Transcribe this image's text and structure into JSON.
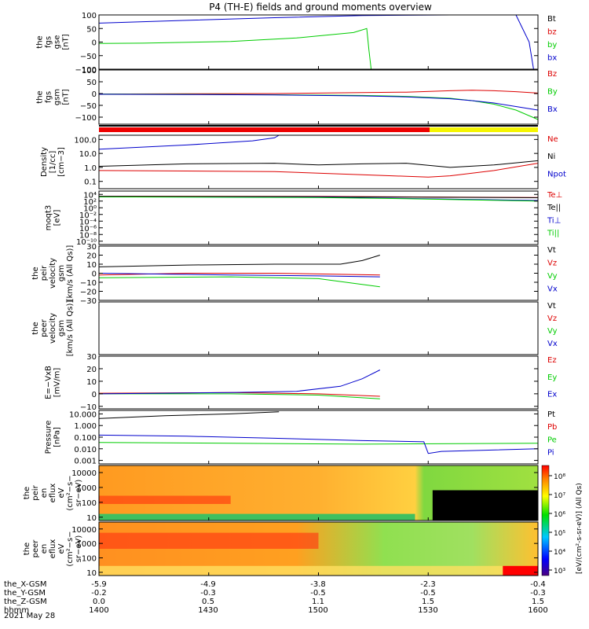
{
  "title": "P4 (TH-E) fields and ground moments overview",
  "date_label": "2021 May 28",
  "colors": {
    "black": "#000000",
    "red": "#dd0000",
    "green": "#00cc00",
    "blue": "#0000cc",
    "yellow": "#f5f500",
    "gray": "#888888"
  },
  "orbit": {
    "rows": [
      {
        "label": "the_X-GSM",
        "values": [
          "-5.9",
          "-4.9",
          "-3.8",
          "-2.3",
          "-0.4"
        ]
      },
      {
        "label": "the_Y-GSM",
        "values": [
          "-0.2",
          "-0.3",
          "-0.5",
          "-0.5",
          "-0.3"
        ]
      },
      {
        "label": "the_Z-GSM",
        "values": [
          "0.0",
          "0.5",
          "1.1",
          "1.5",
          "1.5"
        ]
      },
      {
        "label": "hhmm",
        "values": [
          "1400",
          "1430",
          "1500",
          "1530",
          "1600"
        ]
      }
    ]
  },
  "colorbar": {
    "ticks": [
      "10³",
      "10⁴",
      "10⁵",
      "10⁶",
      "10⁷",
      "10⁸"
    ],
    "units": "[eV/(cm²-s-sr-eV)] (All Qs)"
  },
  "chart_data": [
    {
      "type": "line",
      "id": "fgs_gse",
      "ylabel": [
        "the",
        "fgs",
        "gse",
        "[nT]"
      ],
      "ylim": [
        -100,
        100
      ],
      "ticks": [
        {
          "v": 100,
          "t": "100"
        },
        {
          "v": 50,
          "t": "50"
        },
        {
          "v": 0,
          "t": "0"
        },
        {
          "v": -50,
          "t": "−50"
        },
        {
          "v": -100,
          "t": "−100"
        }
      ],
      "series": [
        {
          "name": "Bt",
          "color": "#000000",
          "x": [],
          "y": []
        },
        {
          "name": "bz",
          "color": "#dd0000",
          "x": [],
          "y": []
        },
        {
          "name": "by",
          "color": "#00cc00",
          "x": [
            0,
            0.1,
            0.3,
            0.45,
            0.58,
            0.61,
            0.615,
            0.62
          ],
          "y": [
            -5,
            -4,
            2,
            15,
            35,
            50,
            -30,
            -100
          ]
        },
        {
          "name": "bx",
          "color": "#0000cc",
          "x": [
            0,
            0.2,
            0.4,
            0.6,
            0.8,
            0.9,
            0.95,
            0.98,
            0.99
          ],
          "y": [
            70,
            80,
            90,
            98,
            100,
            100,
            100,
            0,
            -100
          ]
        }
      ]
    },
    {
      "type": "line",
      "id": "fgs_gsm",
      "ylabel": [
        "the",
        "fgs",
        "gsm",
        "[nT]"
      ],
      "ylim": [
        -130,
        100
      ],
      "ticks": [
        {
          "v": 100,
          "t": "100"
        },
        {
          "v": 50,
          "t": "50"
        },
        {
          "v": 0,
          "t": "0"
        },
        {
          "v": -50,
          "t": "−50"
        },
        {
          "v": -100,
          "t": "−100"
        }
      ],
      "series": [
        {
          "name": "Bz",
          "color": "#dd0000",
          "x": [
            0,
            0.2,
            0.4,
            0.6,
            0.7,
            0.8,
            0.85,
            0.9,
            0.95,
            1.0
          ],
          "y": [
            -2,
            -1,
            0,
            4,
            6,
            12,
            14,
            12,
            8,
            2
          ]
        },
        {
          "name": "By",
          "color": "#00cc00",
          "x": [
            0,
            0.2,
            0.4,
            0.6,
            0.7,
            0.8,
            0.85,
            0.9,
            0.95,
            1.0
          ],
          "y": [
            -2,
            -3,
            -5,
            -8,
            -12,
            -20,
            -30,
            -45,
            -70,
            -110
          ]
        },
        {
          "name": "Bx",
          "color": "#0000cc",
          "x": [
            0,
            0.2,
            0.4,
            0.6,
            0.7,
            0.8,
            0.85,
            0.9,
            0.95,
            1.0
          ],
          "y": [
            -3,
            -4,
            -6,
            -10,
            -14,
            -22,
            -30,
            -40,
            -55,
            -70
          ]
        }
      ]
    },
    {
      "type": "line",
      "id": "density",
      "ylabel": [
        "Density",
        "[1/cc]",
        "[cm−3]"
      ],
      "log": true,
      "ylim": [
        0.03,
        200
      ],
      "ticks": [
        {
          "v": 100,
          "t": "100.0"
        },
        {
          "v": 10,
          "t": "10.0"
        },
        {
          "v": 1,
          "t": "1.0"
        },
        {
          "v": 0.1,
          "t": "0.1"
        }
      ],
      "series": [
        {
          "name": "Ne",
          "color": "#dd0000",
          "x": [
            0,
            0.2,
            0.4,
            0.6,
            0.75,
            0.8,
            0.9,
            1.0
          ],
          "y": [
            0.6,
            0.55,
            0.5,
            0.3,
            0.2,
            0.25,
            0.6,
            2.0
          ]
        },
        {
          "name": "Ni",
          "color": "#000000",
          "x": [
            0,
            0.2,
            0.4,
            0.5,
            0.6,
            0.7,
            0.8,
            0.9,
            1.0
          ],
          "y": [
            1.2,
            1.8,
            2.0,
            1.5,
            1.8,
            2.0,
            1.0,
            1.5,
            3.0
          ]
        },
        {
          "name": "Npot",
          "color": "#0000cc",
          "x": [
            0,
            0.2,
            0.35,
            0.4,
            0.41
          ],
          "y": [
            20,
            40,
            80,
            130,
            200
          ]
        }
      ]
    },
    {
      "type": "line",
      "id": "moqt3",
      "ylabel": [
        "moqt3",
        "[eV]"
      ],
      "log": true,
      "ylim": [
        1e-11,
        100000.0
      ],
      "ticks": [
        {
          "v": 10000,
          "t": "10⁴"
        },
        {
          "v": 100,
          "t": "10²"
        },
        {
          "v": 1,
          "t": "10⁰"
        },
        {
          "v": 0.01,
          "t": "10⁻²"
        },
        {
          "v": 0.0001,
          "t": "10⁻⁴"
        },
        {
          "v": 1e-06,
          "t": "10⁻⁶"
        },
        {
          "v": 1e-08,
          "t": "10⁻⁸"
        },
        {
          "v": 1e-10,
          "t": "10⁻¹⁰"
        }
      ],
      "series": [
        {
          "name": "Te⊥",
          "color": "#dd0000",
          "x": [
            0,
            0.5,
            1.0
          ],
          "y": [
            3000,
            2500,
            1200
          ]
        },
        {
          "name": "Te||",
          "color": "#000000",
          "x": [
            0,
            0.5,
            1.0
          ],
          "y": [
            2500,
            2000,
            1000
          ]
        },
        {
          "name": "Ti⊥",
          "color": "#0000cc",
          "x": [
            0,
            0.5,
            0.7,
            1.0
          ],
          "y": [
            2000,
            1500,
            600,
            150
          ]
        },
        {
          "name": "Ti||",
          "color": "#00cc00",
          "x": [
            0,
            0.5,
            0.7,
            1.0
          ],
          "y": [
            1800,
            1200,
            500,
            100
          ]
        }
      ]
    },
    {
      "type": "line",
      "id": "peir_vel",
      "ylabel": [
        "the",
        "peir",
        "velocity",
        "gsm",
        "[km/s (All Qs)]"
      ],
      "ylim": [
        -30,
        30
      ],
      "ticks": [
        {
          "v": 30,
          "t": "30"
        },
        {
          "v": 20,
          "t": "20"
        },
        {
          "v": 10,
          "t": "10"
        },
        {
          "v": 0,
          "t": "0"
        },
        {
          "v": -10,
          "t": "−10"
        },
        {
          "v": -20,
          "t": "−20"
        },
        {
          "v": -30,
          "t": "−30"
        }
      ],
      "series": [
        {
          "name": "Vt",
          "color": "#000000",
          "x": [
            0,
            0.2,
            0.4,
            0.55,
            0.6,
            0.64
          ],
          "y": [
            7,
            9,
            10,
            10,
            14,
            20
          ]
        },
        {
          "name": "Vz",
          "color": "#dd0000",
          "x": [
            0,
            0.2,
            0.4,
            0.64
          ],
          "y": [
            -2,
            0,
            0,
            -2
          ]
        },
        {
          "name": "Vy",
          "color": "#00cc00",
          "x": [
            0,
            0.3,
            0.5,
            0.64
          ],
          "y": [
            -5,
            -4,
            -6,
            -15
          ]
        },
        {
          "name": "Vx",
          "color": "#0000cc",
          "x": [
            0,
            0.3,
            0.5,
            0.64
          ],
          "y": [
            0,
            -2,
            -3,
            -4
          ]
        }
      ]
    },
    {
      "type": "line",
      "id": "peer_vel",
      "ylabel": [
        "the",
        "peer",
        "velocity",
        "gsm",
        "[km/s (All Qs)]"
      ],
      "ylim": [
        -30,
        30
      ],
      "ticks": [],
      "series": [
        {
          "name": "Vt",
          "color": "#000000",
          "x": [],
          "y": []
        },
        {
          "name": "Vz",
          "color": "#dd0000",
          "x": [],
          "y": []
        },
        {
          "name": "Vy",
          "color": "#00cc00",
          "x": [],
          "y": []
        },
        {
          "name": "Vx",
          "color": "#0000cc",
          "x": [],
          "y": []
        }
      ]
    },
    {
      "type": "line",
      "id": "efield",
      "ylabel": [
        "E=−VxB",
        "[mV/m]"
      ],
      "ylim": [
        -12,
        30
      ],
      "ticks": [
        {
          "v": 30,
          "t": "30"
        },
        {
          "v": 20,
          "t": "20"
        },
        {
          "v": 10,
          "t": "10"
        },
        {
          "v": 0,
          "t": "0"
        },
        {
          "v": -10,
          "t": "−10"
        }
      ],
      "series": [
        {
          "name": "Ez",
          "color": "#dd0000",
          "x": [
            0,
            0.3,
            0.5,
            0.64
          ],
          "y": [
            0.5,
            1,
            0,
            -2
          ]
        },
        {
          "name": "Ey",
          "color": "#00cc00",
          "x": [
            0,
            0.3,
            0.5,
            0.64
          ],
          "y": [
            0,
            0,
            -1,
            -4
          ]
        },
        {
          "name": "Ex",
          "color": "#0000cc",
          "x": [
            0,
            0.3,
            0.45,
            0.55,
            0.6,
            0.64
          ],
          "y": [
            0,
            1,
            2,
            6,
            12,
            19
          ]
        }
      ]
    },
    {
      "type": "line",
      "id": "pressure",
      "ylabel": [
        "Pressure",
        "[nPa]"
      ],
      "log": true,
      "ylim": [
        0.0005,
        20
      ],
      "ticks": [
        {
          "v": 10,
          "t": "10.000"
        },
        {
          "v": 1,
          "t": "1.000"
        },
        {
          "v": 0.1,
          "t": "0.100"
        },
        {
          "v": 0.01,
          "t": "0.010"
        },
        {
          "v": 0.001,
          "t": "0.001"
        }
      ],
      "series": [
        {
          "name": "Pt",
          "color": "#000000",
          "x": [
            0,
            0.15,
            0.3,
            0.41
          ],
          "y": [
            4,
            7,
            10,
            15
          ]
        },
        {
          "name": "Pb",
          "color": "#dd0000",
          "x": [],
          "y": []
        },
        {
          "name": "Pe",
          "color": "#00cc00",
          "x": [
            0,
            0.3,
            0.6,
            1.0
          ],
          "y": [
            0.035,
            0.03,
            0.025,
            0.03
          ]
        },
        {
          "name": "Pi",
          "color": "#0000cc",
          "x": [
            0,
            0.2,
            0.4,
            0.6,
            0.74,
            0.75,
            0.78,
            1.0
          ],
          "y": [
            0.15,
            0.12,
            0.08,
            0.05,
            0.04,
            0.004,
            0.006,
            0.01
          ]
        }
      ]
    },
    {
      "type": "heatmap",
      "id": "peir_eflux",
      "ylabel": [
        "the",
        "peir",
        "en",
        "eflux",
        "eV",
        "(cm²−s−",
        "sr−eV)"
      ],
      "log": true,
      "ylim": [
        6,
        30000
      ],
      "ticks": [
        {
          "v": 10000,
          "t": "10000"
        },
        {
          "v": 1000,
          "t": "1000"
        },
        {
          "v": 100,
          "t": "100"
        },
        {
          "v": 10,
          "t": "10"
        }
      ]
    },
    {
      "type": "heatmap",
      "id": "peer_eflux",
      "ylabel": [
        "the",
        "peer",
        "en",
        "eflux",
        "eV",
        "(cm²−s−",
        "sr−eV)"
      ],
      "log": true,
      "ylim": [
        6,
        30000
      ],
      "ticks": [
        {
          "v": 10000,
          "t": "10000"
        },
        {
          "v": 1000,
          "t": "1000"
        },
        {
          "v": 100,
          "t": "100"
        },
        {
          "v": 10,
          "t": "10"
        }
      ]
    }
  ]
}
